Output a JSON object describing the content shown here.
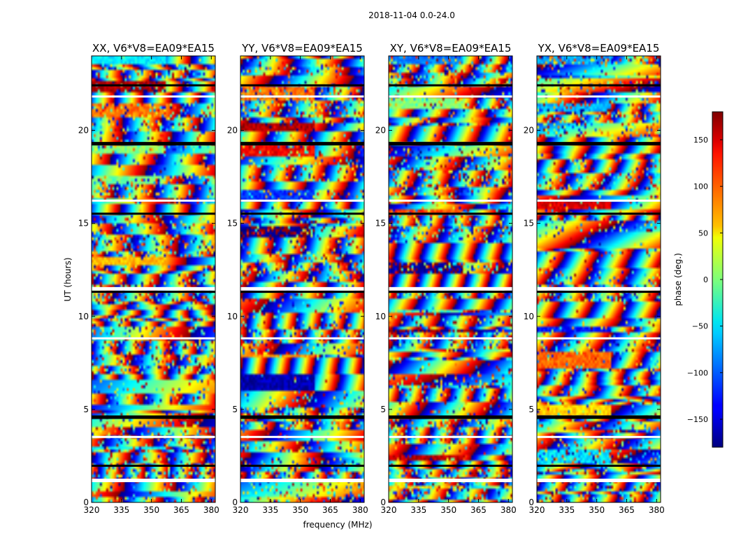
{
  "chart_data": {
    "type": "heatmap",
    "title": "2018-11-04 0.0-24.0",
    "xlabel": "frequency (MHz)",
    "ylabel": "UT (hours)",
    "xlim": [
      320,
      382
    ],
    "ylim": [
      0,
      24
    ],
    "x_ticks": [
      "320",
      "335",
      "350",
      "365",
      "380"
    ],
    "x_tick_values": [
      320,
      335,
      350,
      365,
      380
    ],
    "y_ticks": [
      "0",
      "5",
      "10",
      "15",
      "20"
    ],
    "y_tick_values": [
      0,
      5,
      10,
      15,
      20
    ],
    "panels": [
      {
        "title": "XX, V6*V8=EA09*EA15"
      },
      {
        "title": "YY, V6*V8=EA09*EA15"
      },
      {
        "title": "XY, V6*V8=EA09*EA15"
      },
      {
        "title": "YX, V6*V8=EA09*EA15"
      }
    ],
    "colorbar": {
      "label": "phase (deg.)",
      "range": [
        -180,
        180
      ],
      "ticks": [
        "150",
        "100",
        "50",
        "0",
        "−50",
        "−100",
        "−150"
      ],
      "tick_values": [
        150,
        100,
        50,
        0,
        -50,
        -100,
        -150
      ],
      "colormap": "jet"
    },
    "gaps_ut": [
      1.2,
      1.95,
      3.5,
      4.6,
      8.8,
      11.3,
      11.5,
      15.5,
      16.2,
      19.3,
      21.8,
      22.4
    ]
  }
}
